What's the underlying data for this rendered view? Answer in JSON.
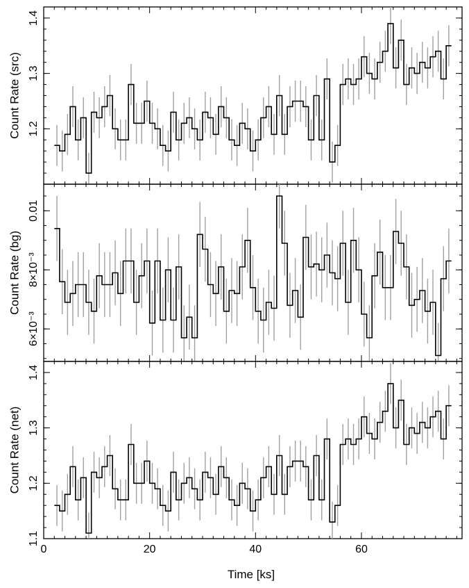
{
  "chart_data": [
    {
      "type": "line",
      "ylabel": "Count Rate (src)",
      "xlim": [
        0,
        79
      ],
      "ylim": [
        1.1,
        1.42
      ],
      "yticks": [
        {
          "v": 1.2,
          "label": "1.2"
        },
        {
          "v": 1.3,
          "label": "1.3"
        },
        {
          "v": 1.4,
          "label": "1.4"
        }
      ],
      "x": [
        2.5,
        3.5,
        4.5,
        5.5,
        6.5,
        7.5,
        8.5,
        9.5,
        10.5,
        11.5,
        12.5,
        13.5,
        14.5,
        15.5,
        16.5,
        17.5,
        18.5,
        19.5,
        20.5,
        21.5,
        22.5,
        23.5,
        24.5,
        25.5,
        26.5,
        27.5,
        28.5,
        29.5,
        30.5,
        31.5,
        32.5,
        33.5,
        34.5,
        35.5,
        36.5,
        37.5,
        38.5,
        39.5,
        40.5,
        41.5,
        42.5,
        43.5,
        44.5,
        45.5,
        46.5,
        47.5,
        48.5,
        49.5,
        50.5,
        51.5,
        52.5,
        53.5,
        54.5,
        55.5,
        56.5,
        57.5,
        58.5,
        59.5,
        60.5,
        61.5,
        62.5,
        63.5,
        64.5,
        65.5,
        66.5,
        67.5,
        68.5,
        69.5,
        70.5,
        71.5,
        72.5,
        73.5,
        74.5,
        75.5,
        76.5
      ],
      "y": [
        1.17,
        1.16,
        1.19,
        1.24,
        1.18,
        1.22,
        1.12,
        1.23,
        1.22,
        1.24,
        1.26,
        1.2,
        1.18,
        1.18,
        1.28,
        1.21,
        1.21,
        1.25,
        1.21,
        1.2,
        1.17,
        1.16,
        1.23,
        1.18,
        1.21,
        1.22,
        1.2,
        1.18,
        1.23,
        1.22,
        1.19,
        1.24,
        1.22,
        1.18,
        1.17,
        1.21,
        1.2,
        1.16,
        1.18,
        1.22,
        1.24,
        1.19,
        1.26,
        1.19,
        1.24,
        1.25,
        1.25,
        1.24,
        1.18,
        1.26,
        1.18,
        1.29,
        1.14,
        1.17,
        1.28,
        1.29,
        1.28,
        1.29,
        1.33,
        1.3,
        1.29,
        1.32,
        1.34,
        1.39,
        1.31,
        1.36,
        1.28,
        1.31,
        1.3,
        1.32,
        1.31,
        1.33,
        1.34,
        1.29,
        1.35
      ],
      "err": 0.037
    },
    {
      "type": "line",
      "ylabel": "Count Rate (bg)",
      "xlim": [
        0,
        79
      ],
      "ylim": [
        0.0049,
        0.0109
      ],
      "yticks": [
        {
          "v": 0.006,
          "label": "6×10⁻³"
        },
        {
          "v": 0.008,
          "label": "8×10⁻³"
        },
        {
          "v": 0.01,
          "label": "0.01"
        }
      ],
      "x": [
        2.5,
        3.5,
        4.5,
        5.5,
        6.5,
        7.5,
        8.5,
        9.5,
        10.5,
        11.5,
        12.5,
        13.5,
        14.5,
        15.5,
        16.5,
        17.5,
        18.5,
        19.5,
        20.5,
        21.5,
        22.5,
        23.5,
        24.5,
        25.5,
        26.5,
        27.5,
        28.5,
        29.5,
        30.5,
        31.5,
        32.5,
        33.5,
        34.5,
        35.5,
        36.5,
        37.5,
        38.5,
        39.5,
        40.5,
        41.5,
        42.5,
        43.5,
        44.5,
        45.5,
        46.5,
        47.5,
        48.5,
        49.5,
        50.5,
        51.5,
        52.5,
        53.5,
        54.5,
        55.5,
        56.5,
        57.5,
        58.5,
        59.5,
        60.5,
        61.5,
        62.5,
        63.5,
        64.5,
        65.5,
        66.5,
        67.5,
        68.5,
        69.5,
        70.5,
        71.5,
        72.5,
        73.5,
        74.5,
        75.5,
        76.5
      ],
      "y": [
        0.0094,
        0.0076,
        0.0069,
        0.0072,
        0.0075,
        0.0075,
        0.0069,
        0.0066,
        0.0078,
        0.0075,
        0.0075,
        0.0079,
        0.0072,
        0.0083,
        0.0083,
        0.0069,
        0.0078,
        0.0083,
        0.0062,
        0.0083,
        0.0063,
        0.008,
        0.0063,
        0.0081,
        0.0057,
        0.0064,
        0.0057,
        0.0092,
        0.0087,
        0.0075,
        0.0072,
        0.0081,
        0.0066,
        0.0073,
        0.0072,
        0.0081,
        0.009,
        0.0074,
        0.0066,
        0.0063,
        0.0069,
        0.0067,
        0.0105,
        0.0089,
        0.0068,
        0.0073,
        0.0064,
        0.0091,
        0.0081,
        0.0082,
        0.008,
        0.0085,
        0.0079,
        0.0077,
        0.0089,
        0.0069,
        0.009,
        0.008,
        0.0065,
        0.0057,
        0.0078,
        0.0086,
        0.0074,
        0.0074,
        0.0093,
        0.0089,
        0.0081,
        0.0068,
        0.007,
        0.0073,
        0.0066,
        0.0069,
        0.0051,
        0.0077,
        0.0083
      ],
      "err": 0.0011
    },
    {
      "type": "line",
      "ylabel": "Count Rate (net)",
      "xlabel": "Time [ks]",
      "xlim": [
        0,
        79
      ],
      "ylim": [
        1.1,
        1.42
      ],
      "xticks": [
        {
          "v": 0,
          "label": "0"
        },
        {
          "v": 20,
          "label": "20"
        },
        {
          "v": 40,
          "label": "40"
        },
        {
          "v": 60,
          "label": "60"
        }
      ],
      "yticks": [
        {
          "v": 1.1,
          "label": "1.1"
        },
        {
          "v": 1.2,
          "label": "1.2"
        },
        {
          "v": 1.3,
          "label": "1.3"
        },
        {
          "v": 1.4,
          "label": "1.4"
        }
      ],
      "x": [
        2.5,
        3.5,
        4.5,
        5.5,
        6.5,
        7.5,
        8.5,
        9.5,
        10.5,
        11.5,
        12.5,
        13.5,
        14.5,
        15.5,
        16.5,
        17.5,
        18.5,
        19.5,
        20.5,
        21.5,
        22.5,
        23.5,
        24.5,
        25.5,
        26.5,
        27.5,
        28.5,
        29.5,
        30.5,
        31.5,
        32.5,
        33.5,
        34.5,
        35.5,
        36.5,
        37.5,
        38.5,
        39.5,
        40.5,
        41.5,
        42.5,
        43.5,
        44.5,
        45.5,
        46.5,
        47.5,
        48.5,
        49.5,
        50.5,
        51.5,
        52.5,
        53.5,
        54.5,
        55.5,
        56.5,
        57.5,
        58.5,
        59.5,
        60.5,
        61.5,
        62.5,
        63.5,
        64.5,
        65.5,
        66.5,
        67.5,
        68.5,
        69.5,
        70.5,
        71.5,
        72.5,
        73.5,
        74.5,
        75.5,
        76.5
      ],
      "y": [
        1.16,
        1.15,
        1.18,
        1.23,
        1.17,
        1.21,
        1.11,
        1.22,
        1.21,
        1.23,
        1.25,
        1.19,
        1.17,
        1.17,
        1.27,
        1.2,
        1.2,
        1.24,
        1.2,
        1.19,
        1.16,
        1.15,
        1.22,
        1.17,
        1.2,
        1.21,
        1.19,
        1.17,
        1.22,
        1.21,
        1.18,
        1.23,
        1.21,
        1.17,
        1.16,
        1.2,
        1.19,
        1.15,
        1.17,
        1.21,
        1.23,
        1.18,
        1.25,
        1.18,
        1.23,
        1.24,
        1.24,
        1.23,
        1.17,
        1.25,
        1.17,
        1.28,
        1.13,
        1.16,
        1.27,
        1.28,
        1.27,
        1.28,
        1.32,
        1.29,
        1.28,
        1.31,
        1.33,
        1.38,
        1.3,
        1.35,
        1.27,
        1.3,
        1.29,
        1.31,
        1.3,
        1.32,
        1.33,
        1.28,
        1.34
      ],
      "err": 0.037
    }
  ]
}
